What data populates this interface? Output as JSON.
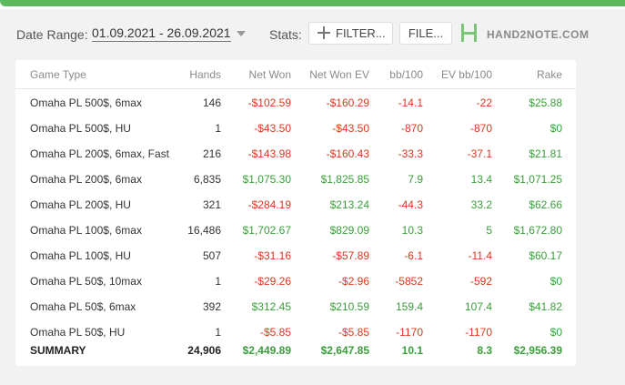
{
  "toolbar": {
    "date_range_label": "Date Range:",
    "date_range_value": "01.09.2021 - 26.09.2021",
    "stats_label": "Stats:",
    "filter_button": "FILTER...",
    "file_button": "FILE...",
    "logo_text": "HAND2NOTE.COM"
  },
  "colors": {
    "accent": "#5cb85c",
    "positive": "#3a9e3a",
    "negative": "#d9381e"
  },
  "table": {
    "headers": [
      "Game Type",
      "Hands",
      "Net Won",
      "Net Won  EV",
      "bb/100",
      "EV bb/100",
      "Rake"
    ],
    "rows": [
      [
        "Omaha PL 500$, 6max",
        "146",
        "-$102.59",
        "-$160.29",
        "-14.1",
        "-22",
        "$25.88"
      ],
      [
        "Omaha PL 500$, HU",
        "1",
        "-$43.50",
        "-$43.50",
        "-870",
        "-870",
        "$0"
      ],
      [
        "Omaha PL 200$, 6max, Fast",
        "216",
        "-$143.98",
        "-$160.43",
        "-33.3",
        "-37.1",
        "$21.81"
      ],
      [
        "Omaha PL 200$, 6max",
        "6,835",
        "$1,075.30",
        "$1,825.85",
        "7.9",
        "13.4",
        "$1,071.25"
      ],
      [
        "Omaha PL 200$, HU",
        "321",
        "-$284.19",
        "$213.24",
        "-44.3",
        "33.2",
        "$62.66"
      ],
      [
        "Omaha PL 100$, 6max",
        "16,486",
        "$1,702.67",
        "$829.09",
        "10.3",
        "5",
        "$1,672.80"
      ],
      [
        "Omaha PL 100$, HU",
        "507",
        "-$31.16",
        "-$57.89",
        "-6.1",
        "-11.4",
        "$60.17"
      ],
      [
        "Omaha PL 50$, 10max",
        "1",
        "-$29.26",
        "-$2.96",
        "-5852",
        "-592",
        "$0"
      ],
      [
        "Omaha PL 50$, 6max",
        "392",
        "$312.45",
        "$210.59",
        "159.4",
        "107.4",
        "$41.82"
      ],
      [
        "Omaha PL 50$, HU",
        "1",
        "-$5.85",
        "-$5.85",
        "-1170",
        "-1170",
        "$0"
      ]
    ],
    "summary": [
      "SUMMARY",
      "24,906",
      "$2,449.89",
      "$2,647.85",
      "10.1",
      "8.3",
      "$2,956.39"
    ]
  }
}
